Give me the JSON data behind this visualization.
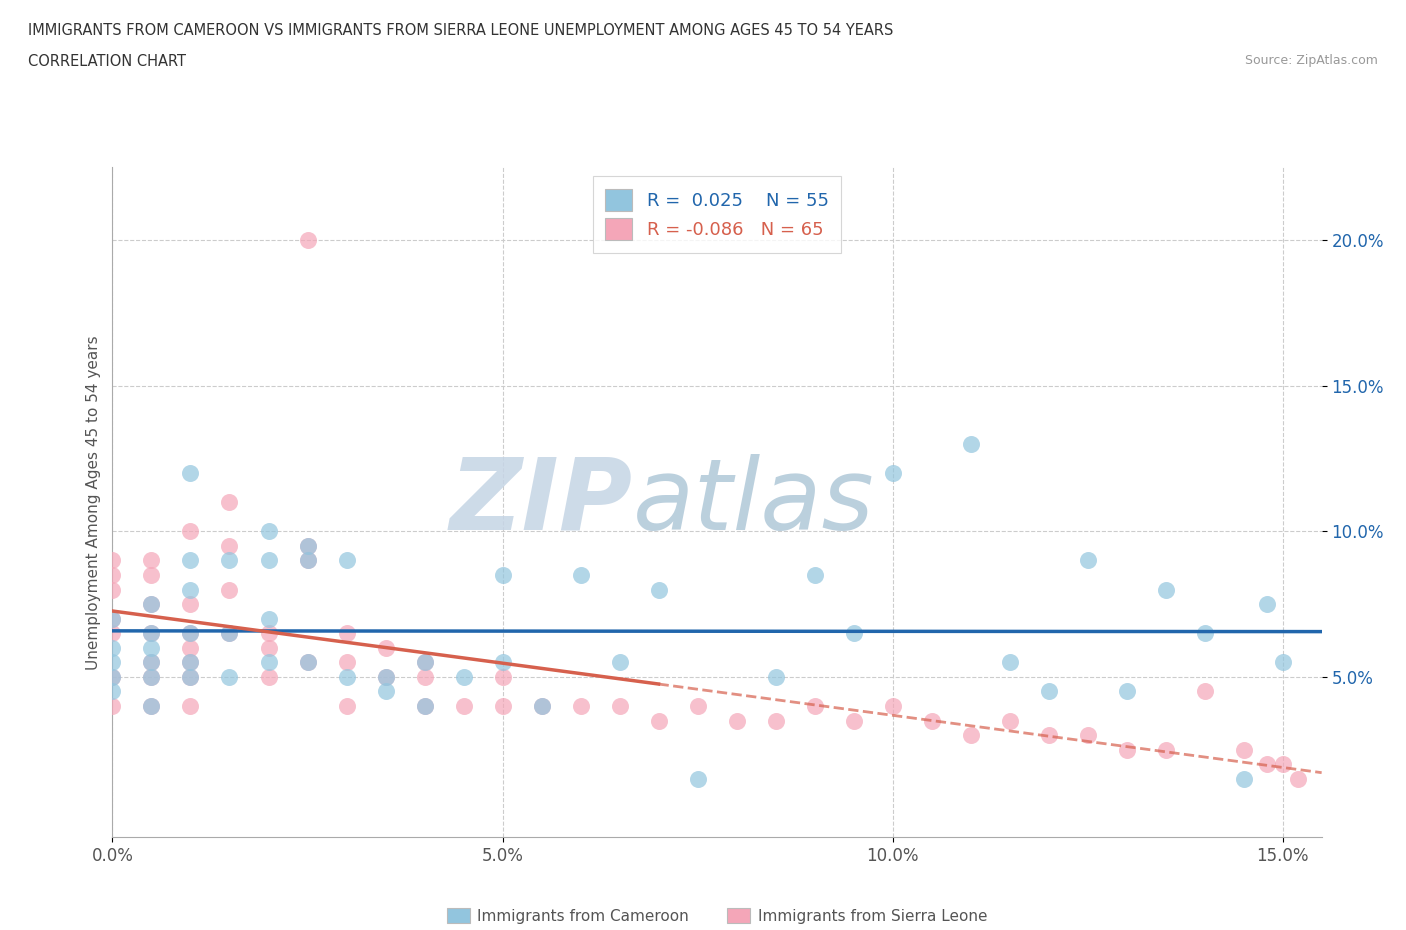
{
  "title_line1": "IMMIGRANTS FROM CAMEROON VS IMMIGRANTS FROM SIERRA LEONE UNEMPLOYMENT AMONG AGES 45 TO 54 YEARS",
  "title_line2": "CORRELATION CHART",
  "source_text": "Source: ZipAtlas.com",
  "ylabel": "Unemployment Among Ages 45 to 54 years",
  "xlim": [
    0.0,
    0.155
  ],
  "ylim": [
    -0.005,
    0.225
  ],
  "xtick_labels": [
    "0.0%",
    "5.0%",
    "10.0%",
    "15.0%"
  ],
  "xtick_vals": [
    0.0,
    0.05,
    0.1,
    0.15
  ],
  "ytick_labels": [
    "5.0%",
    "10.0%",
    "15.0%",
    "20.0%"
  ],
  "ytick_vals": [
    0.05,
    0.1,
    0.15,
    0.2
  ],
  "cameroon_color": "#92c5de",
  "sierra_leone_color": "#f4a6b8",
  "cameroon_line_color": "#2166ac",
  "sierra_leone_line_color": "#d6604d",
  "watermark_zip": "ZIP",
  "watermark_atlas": "atlas",
  "watermark_color_zip": "#c8d8e8",
  "watermark_color_atlas": "#b8ccd8",
  "grid_color": "#cccccc",
  "cameroon_x": [
    0.0,
    0.0,
    0.0,
    0.0,
    0.0,
    0.005,
    0.005,
    0.005,
    0.005,
    0.005,
    0.005,
    0.01,
    0.01,
    0.01,
    0.01,
    0.01,
    0.01,
    0.015,
    0.015,
    0.015,
    0.02,
    0.02,
    0.02,
    0.02,
    0.025,
    0.025,
    0.025,
    0.03,
    0.03,
    0.035,
    0.035,
    0.04,
    0.04,
    0.045,
    0.05,
    0.05,
    0.055,
    0.06,
    0.065,
    0.07,
    0.075,
    0.085,
    0.09,
    0.095,
    0.1,
    0.11,
    0.115,
    0.12,
    0.125,
    0.13,
    0.135,
    0.14,
    0.145,
    0.148,
    0.15
  ],
  "cameroon_y": [
    0.05,
    0.055,
    0.06,
    0.07,
    0.045,
    0.05,
    0.055,
    0.06,
    0.065,
    0.075,
    0.04,
    0.05,
    0.055,
    0.065,
    0.08,
    0.09,
    0.12,
    0.05,
    0.065,
    0.09,
    0.055,
    0.07,
    0.09,
    0.1,
    0.055,
    0.09,
    0.095,
    0.05,
    0.09,
    0.045,
    0.05,
    0.04,
    0.055,
    0.05,
    0.055,
    0.085,
    0.04,
    0.085,
    0.055,
    0.08,
    0.015,
    0.05,
    0.085,
    0.065,
    0.12,
    0.13,
    0.055,
    0.045,
    0.09,
    0.045,
    0.08,
    0.065,
    0.015,
    0.075,
    0.055
  ],
  "sierra_leone_x": [
    0.0,
    0.0,
    0.0,
    0.0,
    0.0,
    0.0,
    0.0,
    0.005,
    0.005,
    0.005,
    0.005,
    0.005,
    0.005,
    0.005,
    0.01,
    0.01,
    0.01,
    0.01,
    0.01,
    0.01,
    0.01,
    0.015,
    0.015,
    0.015,
    0.015,
    0.02,
    0.02,
    0.02,
    0.025,
    0.025,
    0.025,
    0.025,
    0.03,
    0.03,
    0.03,
    0.035,
    0.035,
    0.04,
    0.04,
    0.04,
    0.045,
    0.05,
    0.05,
    0.055,
    0.06,
    0.065,
    0.07,
    0.075,
    0.08,
    0.085,
    0.09,
    0.095,
    0.1,
    0.105,
    0.11,
    0.115,
    0.12,
    0.125,
    0.13,
    0.135,
    0.14,
    0.145,
    0.148,
    0.15,
    0.152
  ],
  "sierra_leone_y": [
    0.065,
    0.07,
    0.08,
    0.085,
    0.09,
    0.04,
    0.05,
    0.055,
    0.065,
    0.075,
    0.085,
    0.09,
    0.04,
    0.05,
    0.04,
    0.05,
    0.06,
    0.065,
    0.075,
    0.1,
    0.055,
    0.065,
    0.08,
    0.095,
    0.11,
    0.05,
    0.06,
    0.065,
    0.055,
    0.09,
    0.095,
    0.2,
    0.04,
    0.055,
    0.065,
    0.05,
    0.06,
    0.04,
    0.05,
    0.055,
    0.04,
    0.04,
    0.05,
    0.04,
    0.04,
    0.04,
    0.035,
    0.04,
    0.035,
    0.035,
    0.04,
    0.035,
    0.04,
    0.035,
    0.03,
    0.035,
    0.03,
    0.03,
    0.025,
    0.025,
    0.045,
    0.025,
    0.02,
    0.02,
    0.015
  ]
}
